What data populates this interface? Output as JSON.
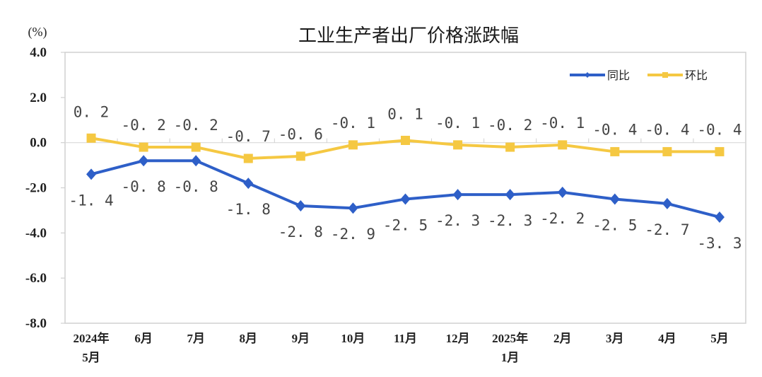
{
  "chart_data": {
    "type": "line",
    "title": "工业生产者出厂价格涨跌幅",
    "unit_label": "(%)",
    "xlabel": "",
    "ylabel": "(%)",
    "ylim": [
      -8.0,
      4.0
    ],
    "yticks": [
      "4.0",
      "2.0",
      "0.0",
      "-2.0",
      "-4.0",
      "-6.0",
      "-8.0"
    ],
    "ytick_values": [
      4,
      2,
      0,
      -2,
      -4,
      -6,
      -8
    ],
    "categories": [
      "2024年5月",
      "6月",
      "7月",
      "8月",
      "9月",
      "10月",
      "11月",
      "12月",
      "2025年1月",
      "2月",
      "3月",
      "4月",
      "5月"
    ],
    "category_lines": [
      [
        "2024年",
        "5月"
      ],
      [
        "6月"
      ],
      [
        "7月"
      ],
      [
        "8月"
      ],
      [
        "9月"
      ],
      [
        "10月"
      ],
      [
        "11月"
      ],
      [
        "12月"
      ],
      [
        "2025年",
        "1月"
      ],
      [
        "2月"
      ],
      [
        "3月"
      ],
      [
        "4月"
      ],
      [
        "5月"
      ]
    ],
    "series": [
      {
        "name": "同比",
        "color": "#2E5FC8",
        "marker": "diamond",
        "values": [
          -1.4,
          -0.8,
          -0.8,
          -1.8,
          -2.8,
          -2.9,
          -2.5,
          -2.3,
          -2.3,
          -2.2,
          -2.5,
          -2.7,
          -3.3
        ],
        "labels": [
          "-1.4",
          "-0.8",
          "-0.8",
          "-1.8",
          "-2.8",
          "-2.9",
          "-2.5",
          "-2.3",
          "-2.3",
          "-2.2",
          "-2.5",
          "-2.7",
          "-3.3"
        ]
      },
      {
        "name": "环比",
        "color": "#F5C842",
        "marker": "square",
        "values": [
          0.2,
          -0.2,
          -0.2,
          -0.7,
          -0.6,
          -0.1,
          0.1,
          -0.1,
          -0.2,
          -0.1,
          -0.4,
          -0.4,
          -0.4
        ],
        "labels": [
          "0.2",
          "-0.2",
          "-0.2",
          "-0.7",
          "-0.6",
          "-0.1",
          "0.1",
          "-0.1",
          "-0.2",
          "-0.1",
          "-0.4",
          "-0.4",
          "-0.4"
        ]
      }
    ],
    "legend_position": "top-right",
    "grid": false
  }
}
